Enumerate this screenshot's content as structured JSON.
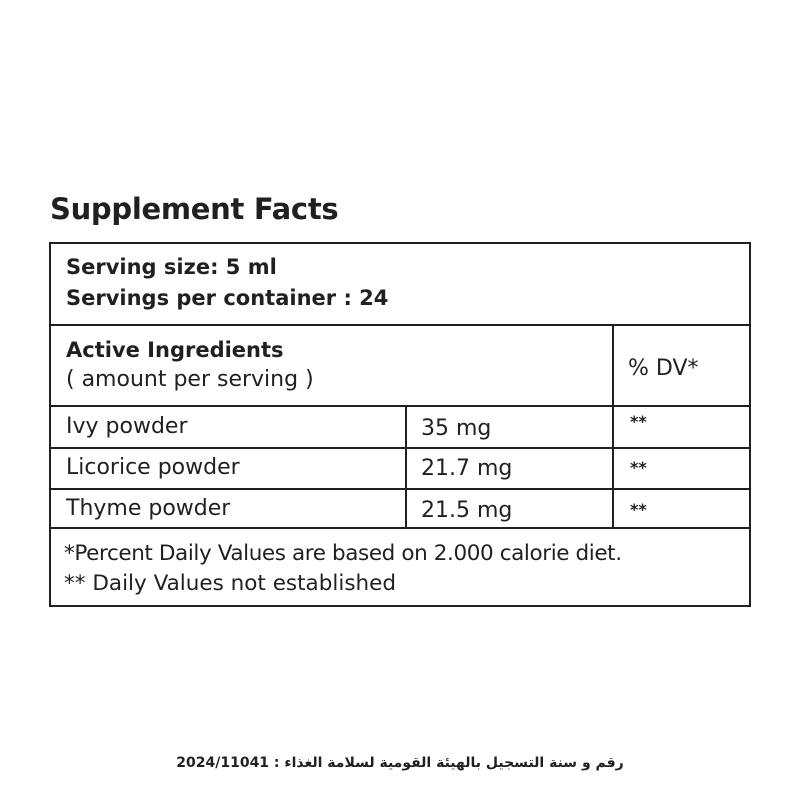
{
  "title": "Supplement Facts",
  "serving": {
    "size": "Serving size: 5 ml",
    "per_container": "Servings per container : 24"
  },
  "header": {
    "ingredients": "Active Ingredients",
    "amount_note": "( amount per serving )",
    "dv": "% DV*"
  },
  "rows": [
    {
      "name": "Ivy powder",
      "amount": "35 mg",
      "dv": "**"
    },
    {
      "name": "Licorice powder",
      "amount": "21.7 mg",
      "dv": "**"
    },
    {
      "name": "Thyme powder",
      "amount": "21.5 mg",
      "dv": "**"
    }
  ],
  "notes": {
    "percent": "*Percent Daily Values are based on 2.000 calorie diet.",
    "not_established": "** Daily Values  not established"
  },
  "registration": "رقم و سنة التسجيل بالهيئة القومية لسلامة الغذاء : 2024/11041"
}
